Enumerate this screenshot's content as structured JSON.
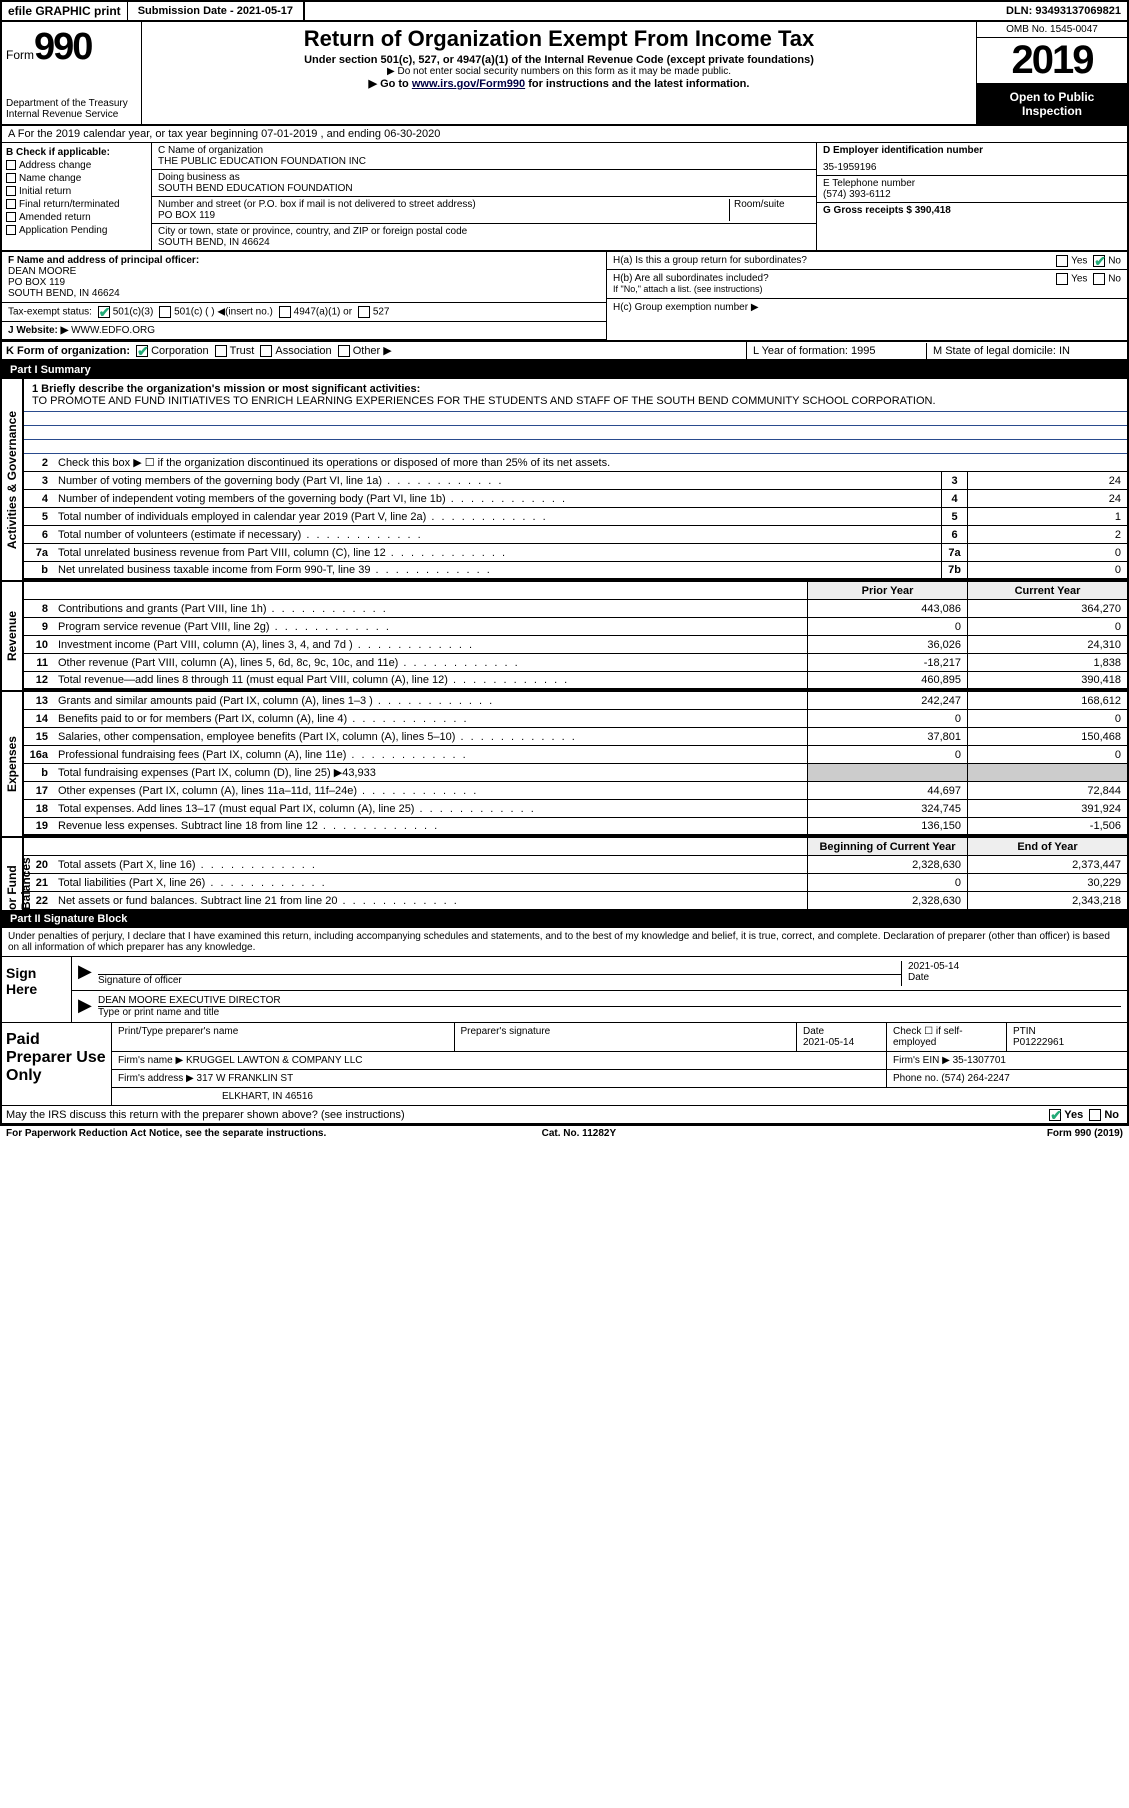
{
  "topbar": {
    "efile_label": "efile GRAPHIC print",
    "submission_label": "Submission Date - 2021-05-17",
    "dln": "DLN: 93493137069821"
  },
  "header": {
    "form_word": "Form",
    "form_number": "990",
    "dept": "Department of the Treasury\nInternal Revenue Service",
    "title": "Return of Organization Exempt From Income Tax",
    "subtitle": "Under section 501(c), 527, or 4947(a)(1) of the Internal Revenue Code (except private foundations)",
    "note1": "▶ Do not enter social security numbers on this form as it may be made public.",
    "note2_pre": "▶ Go to ",
    "note2_link": "www.irs.gov/Form990",
    "note2_post": " for instructions and the latest information.",
    "omb": "OMB No. 1545-0047",
    "year": "2019",
    "open_public": "Open to Public Inspection"
  },
  "row_a": "A For the 2019 calendar year, or tax year beginning 07-01-2019    , and ending 06-30-2020",
  "block_b": {
    "heading": "B Check if applicable:",
    "opts": [
      "Address change",
      "Name change",
      "Initial return",
      "Final return/terminated",
      "Amended return",
      "Application Pending"
    ]
  },
  "block_c": {
    "name_label": "C Name of organization",
    "name": "THE PUBLIC EDUCATION FOUNDATION INC",
    "dba_label": "Doing business as",
    "dba": "SOUTH BEND EDUCATION FOUNDATION",
    "addr_label": "Number and street (or P.O. box if mail is not delivered to street address)",
    "room_label": "Room/suite",
    "addr": "PO BOX 119",
    "city_label": "City or town, state or province, country, and ZIP or foreign postal code",
    "city": "SOUTH BEND, IN  46624"
  },
  "block_d": {
    "label": "D Employer identification number",
    "value": "35-1959196"
  },
  "block_e": {
    "label": "E Telephone number",
    "value": "(574) 393-6112"
  },
  "block_g": {
    "label": "G Gross receipts $ 390,418"
  },
  "block_f": {
    "label": "F  Name and address of principal officer:",
    "name": "DEAN MOORE",
    "addr1": "PO BOX 119",
    "addr2": "SOUTH BEND, IN  46624"
  },
  "block_h": {
    "a": "H(a)  Is this a group return for subordinates?",
    "b": "H(b)  Are all subordinates included?",
    "b_note": "If \"No,\" attach a list. (see instructions)",
    "c": "H(c)  Group exemption number ▶",
    "yes": "Yes",
    "no": "No"
  },
  "tax_exempt": {
    "label": "Tax-exempt status:",
    "o1": "501(c)(3)",
    "o2": "501(c) (  ) ◀(insert no.)",
    "o3": "4947(a)(1) or",
    "o4": "527"
  },
  "website": {
    "label": "J   Website: ▶",
    "value": "WWW.EDFO.ORG"
  },
  "row_k": "K Form of organization:",
  "k_opts": [
    "Corporation",
    "Trust",
    "Association",
    "Other ▶"
  ],
  "row_l": {
    "label": "L Year of formation: 1995"
  },
  "row_m": {
    "label": "M State of legal domicile: IN"
  },
  "part1": {
    "header": "Part I      Summary",
    "line1_label": "1  Briefly describe the organization's mission or most significant activities:",
    "mission": "TO PROMOTE AND FUND INITIATIVES TO ENRICH LEARNING EXPERIENCES FOR THE STUDENTS AND STAFF OF THE SOUTH BEND COMMUNITY SCHOOL CORPORATION.",
    "line2": "Check this box ▶ ☐  if the organization discontinued its operations or disposed of more than 25% of its net assets.",
    "sections": {
      "act_gov": "Activities & Governance",
      "revenue": "Revenue",
      "expenses": "Expenses",
      "net": "Net Assets or Fund Balances"
    },
    "prior_year": "Prior Year",
    "current_year": "Current Year",
    "begin_year": "Beginning of Current Year",
    "end_year": "End of Year",
    "rows_simple": [
      {
        "n": "3",
        "d": "Number of voting members of the governing body (Part VI, line 1a)",
        "b": "3",
        "v": "24"
      },
      {
        "n": "4",
        "d": "Number of independent voting members of the governing body (Part VI, line 1b)",
        "b": "4",
        "v": "24"
      },
      {
        "n": "5",
        "d": "Total number of individuals employed in calendar year 2019 (Part V, line 2a)",
        "b": "5",
        "v": "1"
      },
      {
        "n": "6",
        "d": "Total number of volunteers (estimate if necessary)",
        "b": "6",
        "v": "2"
      },
      {
        "n": "7a",
        "d": "Total unrelated business revenue from Part VIII, column (C), line 12",
        "b": "7a",
        "v": "0"
      },
      {
        "n": "b",
        "d": "Net unrelated business taxable income from Form 990-T, line 39",
        "b": "7b",
        "v": "0"
      }
    ],
    "rows_rev": [
      {
        "n": "8",
        "d": "Contributions and grants (Part VIII, line 1h)",
        "py": "443,086",
        "cy": "364,270"
      },
      {
        "n": "9",
        "d": "Program service revenue (Part VIII, line 2g)",
        "py": "0",
        "cy": "0"
      },
      {
        "n": "10",
        "d": "Investment income (Part VIII, column (A), lines 3, 4, and 7d )",
        "py": "36,026",
        "cy": "24,310"
      },
      {
        "n": "11",
        "d": "Other revenue (Part VIII, column (A), lines 5, 6d, 8c, 9c, 10c, and 11e)",
        "py": "-18,217",
        "cy": "1,838"
      },
      {
        "n": "12",
        "d": "Total revenue—add lines 8 through 11 (must equal Part VIII, column (A), line 12)",
        "py": "460,895",
        "cy": "390,418"
      }
    ],
    "rows_exp": [
      {
        "n": "13",
        "d": "Grants and similar amounts paid (Part IX, column (A), lines 1–3 )",
        "py": "242,247",
        "cy": "168,612"
      },
      {
        "n": "14",
        "d": "Benefits paid to or for members (Part IX, column (A), line 4)",
        "py": "0",
        "cy": "0"
      },
      {
        "n": "15",
        "d": "Salaries, other compensation, employee benefits (Part IX, column (A), lines 5–10)",
        "py": "37,801",
        "cy": "150,468"
      },
      {
        "n": "16a",
        "d": "Professional fundraising fees (Part IX, column (A), line 11e)",
        "py": "0",
        "cy": "0"
      },
      {
        "n": "b",
        "d": "Total fundraising expenses (Part IX, column (D), line 25) ▶43,933",
        "grey": true
      },
      {
        "n": "17",
        "d": "Other expenses (Part IX, column (A), lines 11a–11d, 11f–24e)",
        "py": "44,697",
        "cy": "72,844"
      },
      {
        "n": "18",
        "d": "Total expenses. Add lines 13–17 (must equal Part IX, column (A), line 25)",
        "py": "324,745",
        "cy": "391,924"
      },
      {
        "n": "19",
        "d": "Revenue less expenses. Subtract line 18 from line 12",
        "py": "136,150",
        "cy": "-1,506"
      }
    ],
    "rows_net": [
      {
        "n": "20",
        "d": "Total assets (Part X, line 16)",
        "py": "2,328,630",
        "cy": "2,373,447"
      },
      {
        "n": "21",
        "d": "Total liabilities (Part X, line 26)",
        "py": "0",
        "cy": "30,229"
      },
      {
        "n": "22",
        "d": "Net assets or fund balances. Subtract line 21 from line 20",
        "py": "2,328,630",
        "cy": "2,343,218"
      }
    ]
  },
  "part2": {
    "header": "Part II      Signature Block",
    "penalty": "Under penalties of perjury, I declare that I have examined this return, including accompanying schedules and statements, and to the best of my knowledge and belief, it is true, correct, and complete. Declaration of preparer (other than officer) is based on all information of which preparer has any knowledge.",
    "sign_here": "Sign Here",
    "sig_officer": "Signature of officer",
    "date": "Date",
    "date_val": "2021-05-14",
    "officer": "DEAN MOORE  EXECUTIVE DIRECTOR",
    "type_name": "Type or print name and title",
    "paid": "Paid Preparer Use Only",
    "print_name": "Print/Type preparer's name",
    "prep_sig": "Preparer's signature",
    "date2": "Date",
    "date2_val": "2021-05-14",
    "check_self": "Check ☐ if self-employed",
    "ptin": "PTIN",
    "ptin_val": "P01222961",
    "firm_name_lbl": "Firm's name    ▶",
    "firm_name": "KRUGGEL LAWTON & COMPANY LLC",
    "firm_ein_lbl": "Firm's EIN ▶",
    "firm_ein": "35-1307701",
    "firm_addr_lbl": "Firm's address ▶",
    "firm_addr": "317 W FRANKLIN ST",
    "firm_city": "ELKHART, IN  46516",
    "phone_lbl": "Phone no.",
    "phone": "(574) 264-2247",
    "discuss": "May the IRS discuss this return with the preparer shown above? (see instructions)"
  },
  "footer": {
    "left": "For Paperwork Reduction Act Notice, see the separate instructions.",
    "center": "Cat. No. 11282Y",
    "right": "Form 990 (2019)"
  }
}
